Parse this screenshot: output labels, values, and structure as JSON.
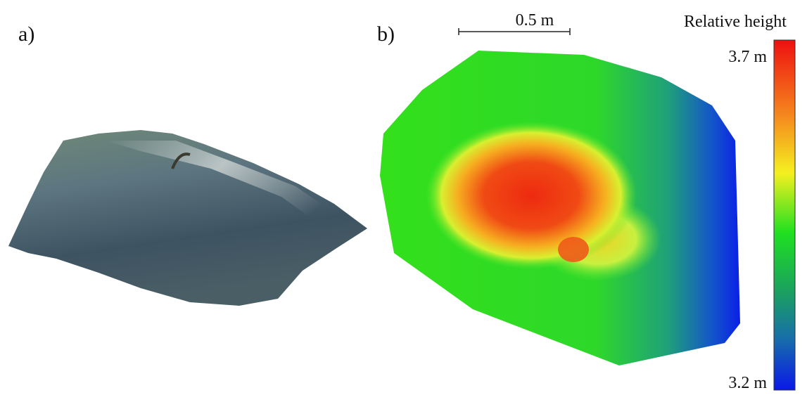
{
  "panels": [
    {
      "label": "a)"
    },
    {
      "label": "b)"
    }
  ],
  "scale_bar": {
    "label": "0.5 m"
  },
  "colorbar": {
    "title": "Relative height",
    "max_label": "3.7 m",
    "min_label": "3.2 m"
  }
}
